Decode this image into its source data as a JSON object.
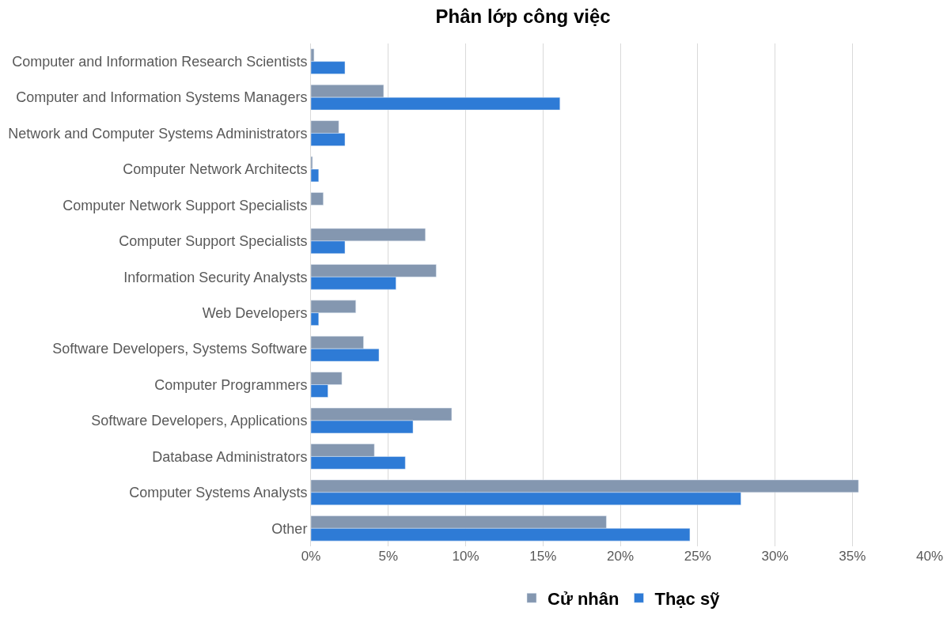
{
  "chart_data": {
    "type": "bar",
    "orientation": "horizontal",
    "title": "Phân lớp công việc",
    "categories": [
      "Computer and Information Research Scientists",
      "Computer and Information Systems Managers",
      "Network and Computer Systems Administrators",
      "Computer Network Architects",
      "Computer Network Support Specialists",
      "Computer Support Specialists",
      "Information Security Analysts",
      "Web Developers",
      "Software Developers, Systems Software",
      "Computer Programmers",
      "Software Developers, Applications",
      "Database Administrators",
      "Computer Systems Analysts",
      "Other"
    ],
    "series": [
      {
        "name": "Cử nhân",
        "color": "#8497b0",
        "values": [
          0.2,
          4.7,
          1.8,
          0.1,
          0.8,
          7.4,
          8.1,
          2.9,
          3.4,
          2.0,
          9.1,
          4.1,
          35.4,
          19.1
        ]
      },
      {
        "name": "Thạc sỹ",
        "color": "#2e7bd6",
        "values": [
          2.2,
          16.1,
          2.2,
          0.5,
          null,
          2.2,
          5.5,
          0.5,
          4.4,
          1.1,
          6.6,
          6.1,
          27.8,
          24.5
        ]
      }
    ],
    "xlim": [
      0,
      40
    ],
    "xticks": [
      {
        "value": 0,
        "label": "0%"
      },
      {
        "value": 5,
        "label": "5%"
      },
      {
        "value": 10,
        "label": "10%"
      },
      {
        "value": 15,
        "label": "15%"
      },
      {
        "value": 20,
        "label": "20%"
      },
      {
        "value": 25,
        "label": "25%"
      },
      {
        "value": 30,
        "label": "30%"
      },
      {
        "value": 35,
        "label": "35%"
      },
      {
        "value": 40,
        "label": "40%"
      }
    ],
    "grid": "x",
    "legend": "bottom"
  }
}
